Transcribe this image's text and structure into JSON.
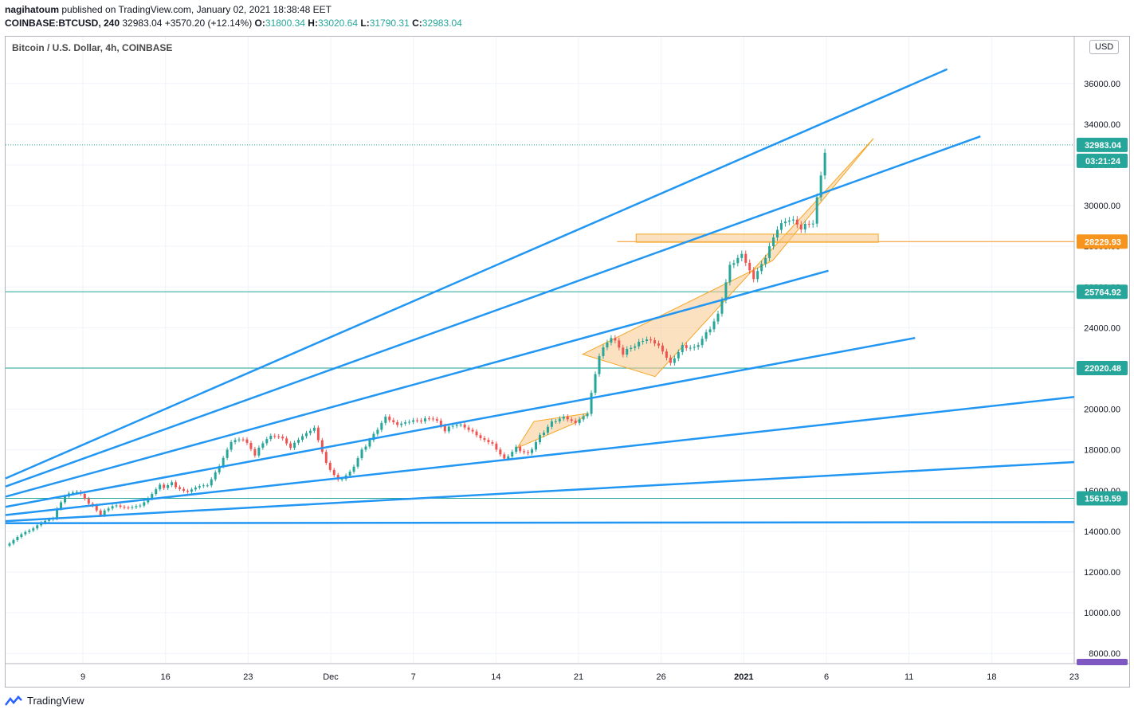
{
  "header": {
    "author": "nagihatoum",
    "published": "published on TradingView.com, January 02, 2021 18:38:48 EET",
    "symbol": "COINBASE:BTCUSD, 240",
    "last": "32983.04",
    "change": "+3570.20 (+12.14%)",
    "o_label": "O:",
    "o_value": "31800.34",
    "h_label": "H:",
    "h_value": "33020.64",
    "l_label": "L:",
    "l_value": "31790.31",
    "c_label": "C:",
    "c_value": "32983.04"
  },
  "legend_title": "Bitcoin / U.S. Dollar, 4h, COINBASE",
  "currency": "USD",
  "footer": {
    "brand": "TradingView"
  },
  "colors": {
    "up": "#26a69a",
    "down": "#ef5350",
    "trendline": "#2196f3",
    "pattern_fill": "#f7c98c",
    "pattern_stroke": "#f5a623",
    "hline": "#26a69a",
    "orange_label": "#f7941d",
    "purple": "#7e57c2"
  },
  "chart_data": {
    "type": "candlestick",
    "title": "Bitcoin / U.S. Dollar, 4h, COINBASE",
    "ylim": [
      7500,
      38300
    ],
    "y_ticks": [
      8000,
      10000,
      12000,
      14000,
      16000,
      18000,
      20000,
      22000,
      24000,
      26000,
      28000,
      30000,
      32000,
      34000,
      36000
    ],
    "x_tick_labels": [
      "9",
      "16",
      "23",
      "Dec",
      "7",
      "14",
      "21",
      "26",
      "2021",
      "6",
      "11",
      "18",
      "23"
    ],
    "grid": true,
    "price_labels": [
      {
        "value": 32983.04,
        "text": "32983.04",
        "color": "#26a69a"
      },
      {
        "value": 28229.93,
        "text": "28229.93",
        "color": "#f7941d"
      },
      {
        "value": 25764.92,
        "text": "25764.92",
        "color": "#26a69a"
      },
      {
        "value": 22020.48,
        "text": "22020.48",
        "color": "#26a69a"
      },
      {
        "value": 15619.59,
        "text": "15619.59",
        "color": "#26a69a"
      }
    ],
    "countdown": "03:21:24",
    "horizontal_lines": [
      25764.92,
      22020.48,
      15619.59
    ],
    "price_path": [
      [
        0,
        13300
      ],
      [
        2,
        13900
      ],
      [
        4,
        14600
      ],
      [
        5,
        15600
      ],
      [
        6,
        15900
      ],
      [
        7,
        15400
      ],
      [
        8,
        14900
      ],
      [
        9,
        15400
      ],
      [
        11,
        15300
      ],
      [
        13,
        16200
      ],
      [
        14,
        16400
      ],
      [
        15,
        15900
      ],
      [
        17,
        16100
      ],
      [
        18,
        17000
      ],
      [
        19,
        18200
      ],
      [
        20,
        18400
      ],
      [
        21,
        17700
      ],
      [
        22,
        18600
      ],
      [
        23,
        18800
      ],
      [
        24,
        18300
      ],
      [
        25,
        18900
      ],
      [
        26,
        19300
      ],
      [
        27,
        17500
      ],
      [
        28,
        16600
      ],
      [
        29,
        16900
      ],
      [
        30,
        17900
      ],
      [
        31,
        18600
      ],
      [
        32,
        19400
      ],
      [
        33,
        19000
      ],
      [
        34,
        19200
      ],
      [
        35,
        19300
      ],
      [
        36,
        19500
      ],
      [
        37,
        19000
      ],
      [
        38,
        19400
      ],
      [
        39,
        19200
      ],
      [
        40,
        18800
      ],
      [
        41,
        18500
      ],
      [
        42,
        17700
      ],
      [
        43,
        18200
      ],
      [
        44,
        17800
      ],
      [
        45,
        18600
      ],
      [
        46,
        19200
      ],
      [
        47,
        19400
      ],
      [
        48,
        19100
      ],
      [
        49,
        19600
      ],
      [
        50,
        22500
      ],
      [
        51,
        23500
      ],
      [
        52,
        22800
      ],
      [
        53,
        23300
      ],
      [
        54,
        23700
      ],
      [
        55,
        23400
      ],
      [
        56,
        22500
      ],
      [
        57,
        23300
      ],
      [
        58,
        23100
      ],
      [
        59,
        23700
      ],
      [
        60,
        24500
      ],
      [
        61,
        26800
      ],
      [
        62,
        27300
      ],
      [
        63,
        26100
      ],
      [
        64,
        27200
      ],
      [
        65,
        28700
      ],
      [
        66,
        29300
      ],
      [
        67,
        29000
      ],
      [
        68,
        29400
      ],
      [
        69,
        32983
      ]
    ],
    "trendlines": [
      {
        "x1": 0,
        "y1": 16600,
        "x2": 79.3,
        "y2": 36700
      },
      {
        "x1": 0,
        "y1": 16200,
        "x2": 82.1,
        "y2": 33400
      },
      {
        "x1": 0,
        "y1": 15700,
        "x2": 69.3,
        "y2": 26800
      },
      {
        "x1": 0,
        "y1": 15200,
        "x2": 76.6,
        "y2": 23500
      },
      {
        "x1": 0,
        "y1": 14800,
        "x2": 90.0,
        "y2": 20600
      },
      {
        "x1": 0,
        "y1": 14500,
        "x2": 90.0,
        "y2": 17400
      },
      {
        "x1": 0,
        "y1": 14400,
        "x2": 90.0,
        "y2": 14450
      }
    ],
    "patterns": [
      {
        "kind": "triangle",
        "points": [
          [
            48.6,
            22700
          ],
          [
            54.7,
            21600
          ],
          [
            73.1,
            33300
          ],
          [
            64.6,
            27300
          ]
        ]
      },
      {
        "kind": "triangle",
        "points": [
          [
            43.1,
            18100
          ],
          [
            47.9,
            19300
          ],
          [
            49.1,
            19800
          ],
          [
            44.5,
            19400
          ]
        ]
      },
      {
        "kind": "rectangle",
        "points": [
          [
            53.1,
            28600
          ],
          [
            73.5,
            28600
          ],
          [
            73.5,
            28200
          ],
          [
            53.1,
            28200
          ]
        ]
      }
    ],
    "orange_level": 28229.93
  }
}
